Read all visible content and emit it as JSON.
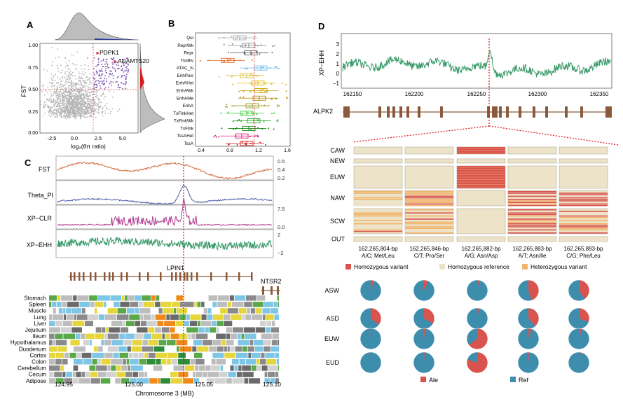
{
  "panels": {
    "A": {
      "label": "A",
      "xlabel": "log₂(θπ ratio)",
      "ylabel": "FST",
      "xticks": [
        "-2.5",
        "0.0",
        "2.5",
        "5.0"
      ],
      "yticks": [
        "0.00",
        "0.25",
        "0.50",
        "0.75",
        "1.00"
      ],
      "genes": [
        "PDPK1",
        "ADAMTS20"
      ]
    },
    "B": {
      "label": "B",
      "categories": [
        "Qui",
        "ReprWk",
        "Repr",
        "TssBiv",
        "ATAC_Is",
        "EnhPois",
        "EnhAHet",
        "EnhAWk",
        "EnhAMe",
        "EnhA",
        "TxFlnkHet",
        "TxFlnkWk",
        "TxFlnk",
        "TssAHet",
        "TssA"
      ],
      "xticks": [
        "0.4",
        "0.8",
        "1.2",
        "1.6"
      ],
      "xlabel": "Log₂(Ratio)",
      "colors": [
        "#aaaaaa",
        "#888888",
        "#666666",
        "#e8661f",
        "#6bb8e8",
        "#d9c24a",
        "#e6b800",
        "#c8a000",
        "#b08800",
        "#9a9a1a",
        "#33cc33",
        "#22aa22",
        "#118811",
        "#e0197d",
        "#cc1f1f"
      ]
    },
    "C": {
      "label": "C",
      "tracks": [
        {
          "name": "FST",
          "ticks": [
            "0.5",
            "0.4",
            "0.3",
            "0.2"
          ],
          "color": "#d2693a"
        },
        {
          "name": "Theta_PI",
          "ticks": [],
          "color": "#4f5fa8"
        },
        {
          "name": "XP−CLR",
          "ticks": [
            "7.5",
            "5.0",
            "2.5",
            "0.0"
          ],
          "color": "#b03a8e"
        },
        {
          "name": "XP−EHH",
          "ticks": [
            "2",
            "0",
            "−2"
          ],
          "color": "#3a9a6a"
        }
      ],
      "genes": [
        "LPIN1",
        "NTSR2"
      ],
      "tissues": [
        "Stomach",
        "Spleen",
        "Muscle",
        "Lung",
        "Liver",
        "Jejunum",
        "Ileum",
        "Hypothalamus",
        "Duodenum",
        "Cortex",
        "Colon",
        "Cerebellum",
        "Cecum",
        "Adipose"
      ],
      "xticks": [
        "124.95",
        "125.00",
        "125.05",
        "125.10"
      ],
      "xlabel": "Chromosome  3  (MB)"
    },
    "D": {
      "label": "D",
      "ylabel": "XP−EHH",
      "yticks": [
        "3",
        "2",
        "1",
        "0",
        "−1"
      ],
      "xticks": [
        "162150",
        "162200",
        "162250",
        "162300",
        "162350"
      ],
      "gene": "ALPK2",
      "populations": [
        "CAW",
        "NEW",
        "EUW",
        "NAW",
        "SCW",
        "OUT"
      ],
      "snps": [
        {
          "pos": "162,265,804-bp",
          "change": "A/C; Met/Leu"
        },
        {
          "pos": "162,265,846-bp",
          "change": "C/T; Pro/Ser"
        },
        {
          "pos": "162,265,882-bp",
          "change": "A/G; Asn/Asp"
        },
        {
          "pos": "162,265,883-bp",
          "change": "A/T; Asn/Ile"
        },
        {
          "pos": "162,265,893-bp",
          "change": "C/G; Phe/Leu"
        }
      ],
      "legend": [
        {
          "label": "Homozygous variant",
          "color": "#d9534f"
        },
        {
          "label": "Homozygous reference",
          "color": "#ede3c9"
        },
        {
          "label": "Heterozygous variant",
          "color": "#f2b46a"
        }
      ],
      "pie_groups": [
        "ASW",
        "ASD",
        "EUW",
        "EUD"
      ],
      "pie_alt_fraction": [
        [
          0.05,
          0.07,
          0.03,
          0.45,
          0.4
        ],
        [
          0.35,
          0.33,
          0.03,
          0.38,
          0.3
        ],
        [
          0.02,
          0.02,
          0.65,
          0.05,
          0.05
        ],
        [
          0.01,
          0.01,
          0.8,
          0.02,
          0.03
        ]
      ],
      "pie_legend": [
        {
          "label": "Ale",
          "color": "#d9534f"
        },
        {
          "label": "Ref",
          "color": "#3d8dad"
        }
      ]
    }
  }
}
